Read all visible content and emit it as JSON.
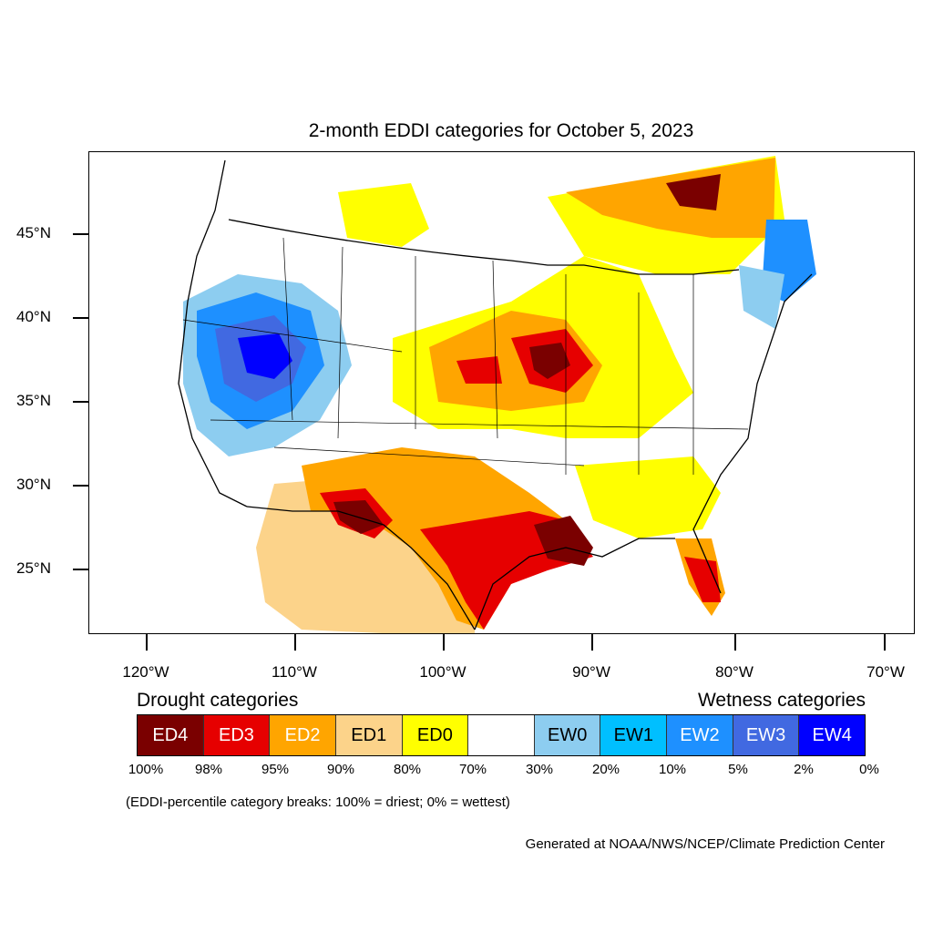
{
  "title": "2-month EDDI categories for October 5, 2023",
  "axes": {
    "lat_labels": [
      "45°N",
      "40°N",
      "35°N",
      "30°N",
      "25°N"
    ],
    "lon_labels": [
      "120°W",
      "110°W",
      "100°W",
      "90°W",
      "80°W",
      "70°W"
    ]
  },
  "legend": {
    "drought_heading": "Drought categories",
    "wetness_heading": "Wetness categories",
    "categories": [
      {
        "label": "ED4",
        "color": "#7a0000",
        "text_color": "#ffffff"
      },
      {
        "label": "ED3",
        "color": "#e60000",
        "text_color": "#ffffff"
      },
      {
        "label": "ED2",
        "color": "#ffa500",
        "text_color": "#ffffff"
      },
      {
        "label": "ED1",
        "color": "#fcd38a",
        "text_color": "#000000"
      },
      {
        "label": "ED0",
        "color": "#ffff00",
        "text_color": "#000000"
      },
      {
        "label": "",
        "color": "#ffffff",
        "text_color": "#000000"
      },
      {
        "label": "EW0",
        "color": "#8dcdf0",
        "text_color": "#000000"
      },
      {
        "label": "EW1",
        "color": "#00bfff",
        "text_color": "#000000"
      },
      {
        "label": "EW2",
        "color": "#1e90ff",
        "text_color": "#ffffff"
      },
      {
        "label": "EW3",
        "color": "#4169e1",
        "text_color": "#ffffff"
      },
      {
        "label": "EW4",
        "color": "#0000ff",
        "text_color": "#ffffff"
      }
    ],
    "breaks": [
      "100%",
      "98%",
      "95%",
      "90%",
      "80%",
      "70%",
      "30%",
      "20%",
      "10%",
      "5%",
      "2%",
      "0%"
    ]
  },
  "note": "(EDDI-percentile category breaks: 100% = driest; 0% = wettest)",
  "credit": "Generated at NOAA/NWS/NCEP/Climate Prediction Center"
}
